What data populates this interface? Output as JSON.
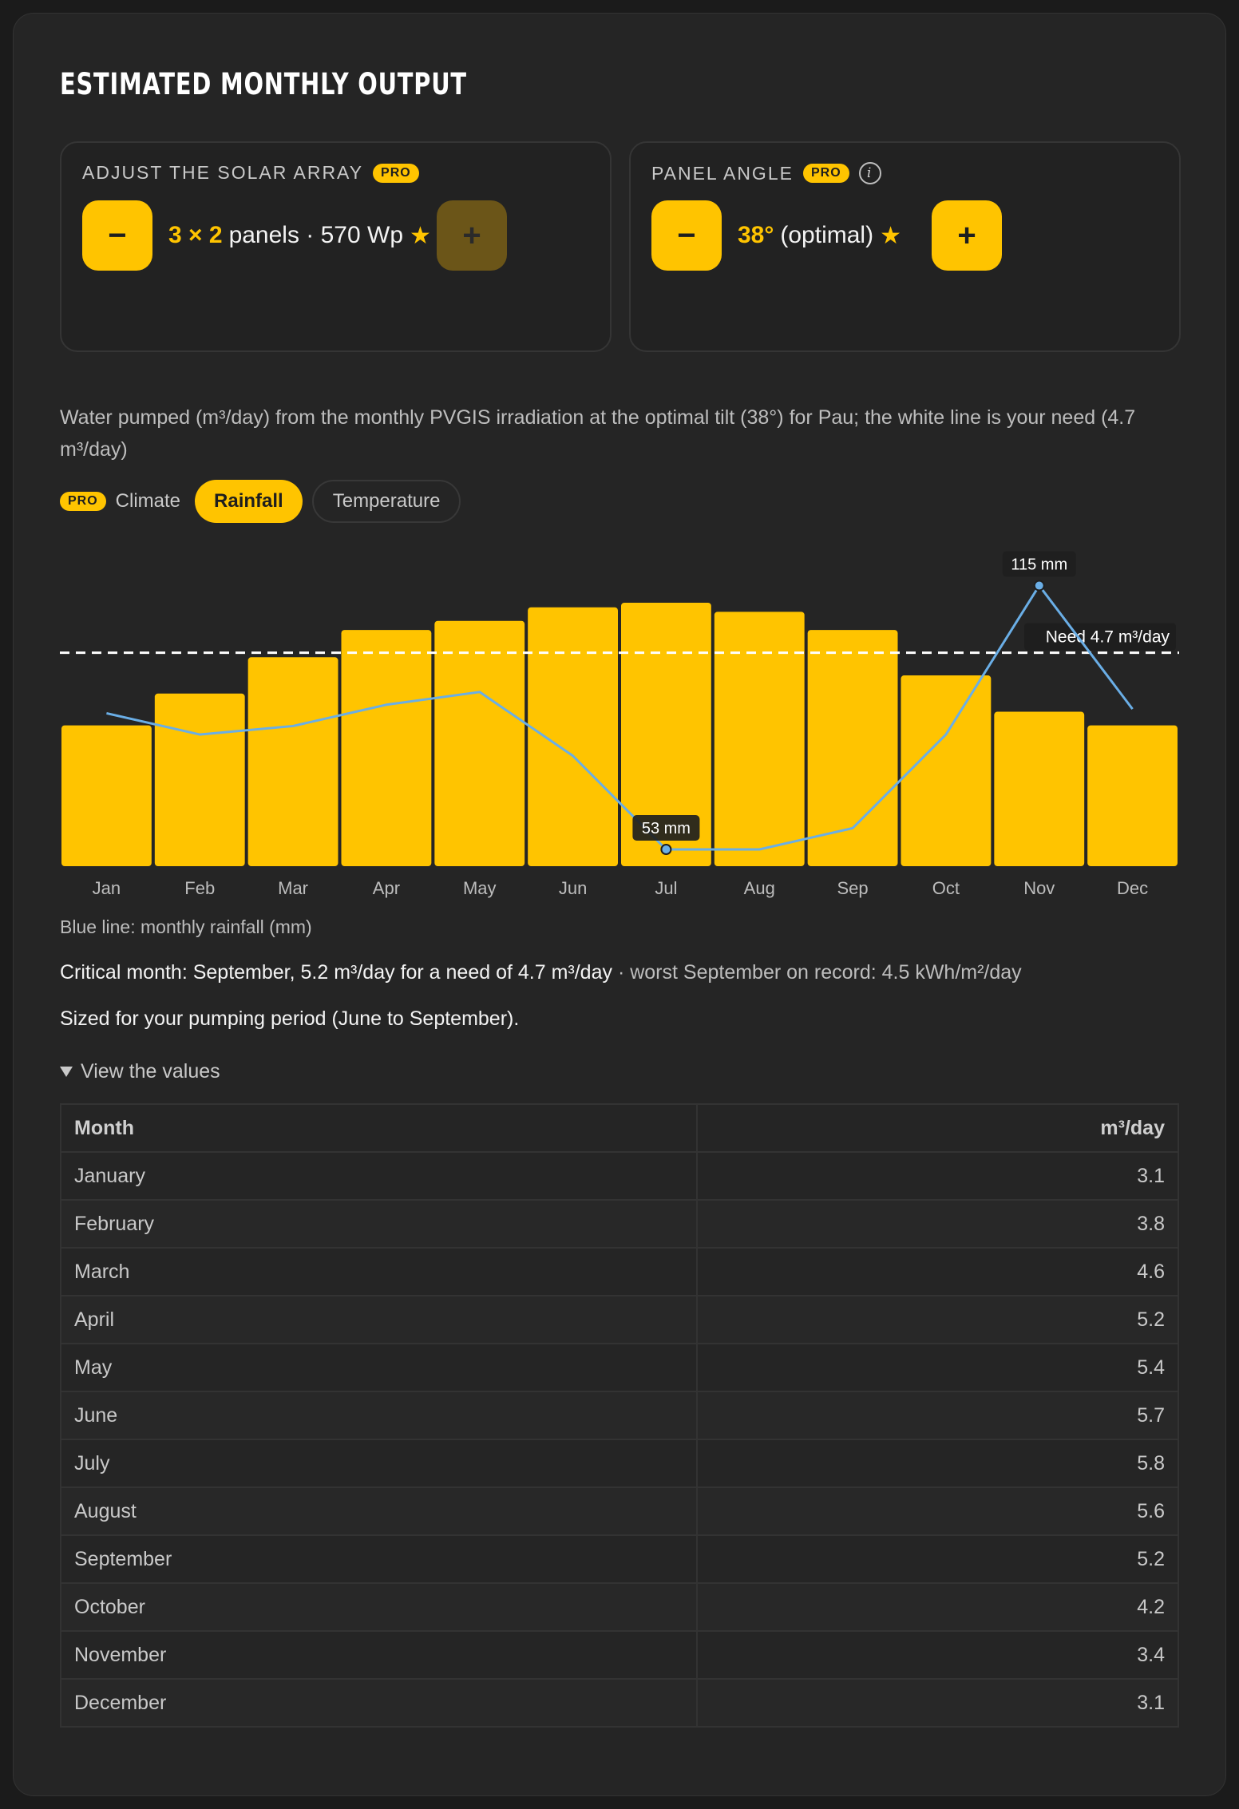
{
  "title": "ESTIMATED MONTHLY OUTPUT",
  "solar_array": {
    "label": "ADJUST THE SOLAR ARRAY",
    "badge": "PRO",
    "minus": "−",
    "plus": "+",
    "count": "3 × 2",
    "rest": "panels · 570 Wp",
    "star": "★"
  },
  "panel_angle": {
    "label": "PANEL ANGLE",
    "badge": "PRO",
    "info": "i",
    "minus": "−",
    "plus": "+",
    "angle": "38°",
    "rest": "(optimal)",
    "star": "★"
  },
  "description": "Water pumped (m³/day) from the monthly PVGIS irradiation at the optimal tilt (38°) for Pau; the white line is your need (4.7 m³/day)",
  "climate": {
    "badge": "PRO",
    "label": "Climate",
    "options": [
      "Rainfall",
      "Temperature"
    ],
    "selected": "Rainfall"
  },
  "colors": {
    "bar": "#ffc400",
    "rain": "#6aaee6",
    "need": "#ffffff"
  },
  "chart_data": {
    "type": "bar",
    "categories": [
      "Jan",
      "Feb",
      "Mar",
      "Apr",
      "May",
      "Jun",
      "Jul",
      "Aug",
      "Sep",
      "Oct",
      "Nov",
      "Dec"
    ],
    "series": [
      {
        "values": [
          3.1,
          3.8,
          4.6,
          5.2,
          5.4,
          5.7,
          5.8,
          5.6,
          5.2,
          4.2,
          3.4,
          3.1
        ]
      }
    ],
    "rainfall": {
      "values": [
        85,
        80,
        82,
        87,
        90,
        75,
        53,
        53,
        58,
        80,
        115,
        86
      ],
      "min_label": "53 mm",
      "max_label": "115 mm"
    },
    "need": {
      "value": 4.7,
      "label": "Need 4.7 m³/day"
    },
    "ylim": [
      0,
      5.8
    ],
    "grid": false,
    "legend": "none"
  },
  "chart_note": "Blue line: monthly rainfall (mm)",
  "critical": {
    "main": "Critical month: September, 5.2 m³/day for a need of 4.7 m³/day",
    "extra": " · worst September on record: 4.5 kWh/m²/day"
  },
  "sized": "Sized for your pumping period (June to September).",
  "details_label": "View the values",
  "table": {
    "headers": [
      "Month",
      "m³/day"
    ],
    "rows": [
      [
        "January",
        "3.1"
      ],
      [
        "February",
        "3.8"
      ],
      [
        "March",
        "4.6"
      ],
      [
        "April",
        "5.2"
      ],
      [
        "May",
        "5.4"
      ],
      [
        "June",
        "5.7"
      ],
      [
        "July",
        "5.8"
      ],
      [
        "August",
        "5.6"
      ],
      [
        "September",
        "5.2"
      ],
      [
        "October",
        "4.2"
      ],
      [
        "November",
        "3.4"
      ],
      [
        "December",
        "3.1"
      ]
    ]
  }
}
